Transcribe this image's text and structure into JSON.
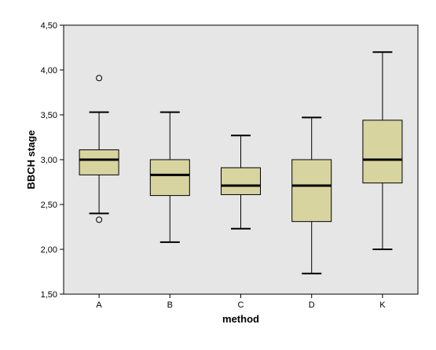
{
  "chart_data": {
    "type": "boxplot",
    "title": "",
    "xlabel": "method",
    "ylabel": "BBCH stage",
    "ylim": [
      1.5,
      4.5
    ],
    "yticks": [
      "1,50",
      "2,00",
      "2,50",
      "3,00",
      "3,50",
      "4,00",
      "4,50"
    ],
    "ytick_values": [
      1.5,
      2.0,
      2.5,
      3.0,
      3.5,
      4.0,
      4.5
    ],
    "categories": [
      "A",
      "B",
      "C",
      "D",
      "K"
    ],
    "boxes": [
      {
        "category": "A",
        "whisker_low": 2.4,
        "q1": 2.83,
        "median": 3.0,
        "q3": 3.11,
        "whisker_high": 3.53,
        "outliers": [
          2.33,
          3.91
        ]
      },
      {
        "category": "B",
        "whisker_low": 2.08,
        "q1": 2.6,
        "median": 2.83,
        "q3": 3.0,
        "whisker_high": 3.53,
        "outliers": []
      },
      {
        "category": "C",
        "whisker_low": 2.23,
        "q1": 2.61,
        "median": 2.71,
        "q3": 2.91,
        "whisker_high": 3.27,
        "outliers": []
      },
      {
        "category": "D",
        "whisker_low": 1.73,
        "q1": 2.31,
        "median": 2.71,
        "q3": 3.0,
        "whisker_high": 3.47,
        "outliers": []
      },
      {
        "category": "K",
        "whisker_low": 2.0,
        "q1": 2.74,
        "median": 3.0,
        "q3": 3.44,
        "whisker_high": 4.2,
        "outliers": []
      }
    ],
    "colors": {
      "plot_background": "#e6e6e6",
      "box_fill": "#d8d4a0",
      "stroke": "#000000"
    },
    "grid": false,
    "legend": "none"
  }
}
